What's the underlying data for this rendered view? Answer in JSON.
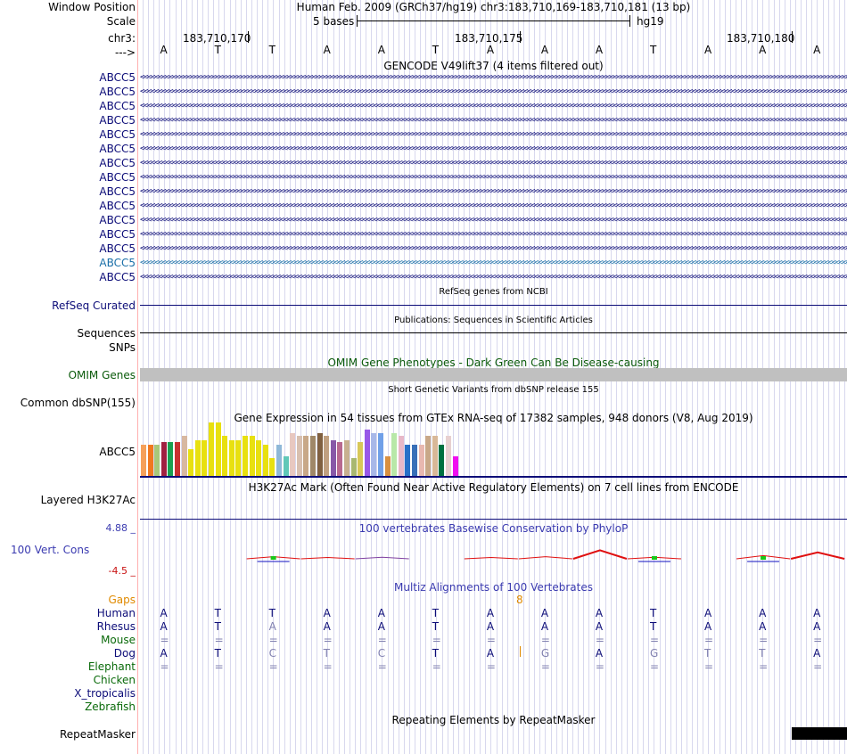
{
  "header": {
    "window_position_label": "Window Position",
    "assembly_text": "Human Feb. 2009 (GRCh37/hg19)   chr3:183,710,169-183,710,181 (13 bp)",
    "scale_label": "Scale",
    "scale_bar_text": "5 bases",
    "scale_db": "hg19",
    "chrom_label": "chr3:",
    "strand_label": "--->",
    "positions": [
      "183,710,170",
      "183,710,175",
      "183,710,180"
    ]
  },
  "sequence": [
    "A",
    "T",
    "T",
    "A",
    "A",
    "T",
    "A",
    "A",
    "A",
    "T",
    "A",
    "A",
    "A"
  ],
  "gencode": {
    "title": "GENCODE V49lift37 (4 items filtered out)",
    "gene_labels": [
      "ABCC5",
      "ABCC5",
      "ABCC5",
      "ABCC5",
      "ABCC5",
      "ABCC5",
      "ABCC5",
      "ABCC5",
      "ABCC5",
      "ABCC5",
      "ABCC5",
      "ABCC5",
      "ABCC5",
      "ABCC5",
      "ABCC5"
    ],
    "arrow_text": "<<<<<<<<<<<<<<<<<<<<<<<<<<<<<<<<<<<<<<<<<<<<<<<<<<<<<<<<<<<<<<<<<<<<<<<<<<<<<<<<<<<<<<<<<<<<<<<<<<<<<<<<<<<<<<<<<<<<<<<<<<<<<<<<<<<<<<<<<<<<<<<<<<<<<<<<<<<<<<<<<<<<<<<<<<<<<<<<<<<<<<<<<<<<<<<<<<<<<<<<<<<<<<<<<<<<<<<<<<<<<<<<<<<<<<<<<<<<<<<<",
    "colors": {
      "navy": "#0c0c78",
      "highlight": "#1a6fa8"
    }
  },
  "refseq": {
    "title": "RefSeq genes from NCBI",
    "label": "RefSeq Curated"
  },
  "publications": {
    "title": "Publications: Sequences in Scientific Articles",
    "label": "Sequences"
  },
  "snps_label": "SNPs",
  "omim": {
    "title": "OMIM Gene Phenotypes - Dark Green Can Be Disease-causing",
    "label": "OMIM Genes",
    "color": "#0a5a0a"
  },
  "dbsnp": {
    "title": "Short Genetic Variants from dbSNP release 155",
    "label": "Common dbSNP(155)"
  },
  "gtex": {
    "title": "Gene Expression in 54 tissues from GTEx RNA-seq of 17382 samples, 948 donors (V8, Aug 2019)",
    "label": "ABCC5",
    "bars": [
      {
        "v": 0.35,
        "c": "#f5a05a"
      },
      {
        "v": 0.35,
        "c": "#f07820"
      },
      {
        "v": 0.35,
        "c": "#a8c87a"
      },
      {
        "v": 0.38,
        "c": "#a02040"
      },
      {
        "v": 0.38,
        "c": "#1aa050"
      },
      {
        "v": 0.38,
        "c": "#c83030"
      },
      {
        "v": 0.45,
        "c": "#d8b8a0"
      },
      {
        "v": 0.3,
        "c": "#e8e010"
      },
      {
        "v": 0.4,
        "c": "#e8e010"
      },
      {
        "v": 0.4,
        "c": "#e8e010"
      },
      {
        "v": 0.6,
        "c": "#e8e010"
      },
      {
        "v": 0.6,
        "c": "#e8e010"
      },
      {
        "v": 0.45,
        "c": "#e8e010"
      },
      {
        "v": 0.4,
        "c": "#e8e010"
      },
      {
        "v": 0.4,
        "c": "#e8e010"
      },
      {
        "v": 0.45,
        "c": "#e8e010"
      },
      {
        "v": 0.45,
        "c": "#e8e010"
      },
      {
        "v": 0.4,
        "c": "#e8e010"
      },
      {
        "v": 0.35,
        "c": "#e8e010"
      },
      {
        "v": 0.2,
        "c": "#e8e010"
      },
      {
        "v": 0.35,
        "c": "#8fb8d8"
      },
      {
        "v": 0.22,
        "c": "#60c8b8"
      },
      {
        "v": 0.48,
        "c": "#e8c8c0"
      },
      {
        "v": 0.45,
        "c": "#d8c0b0"
      },
      {
        "v": 0.45,
        "c": "#c8a888"
      },
      {
        "v": 0.45,
        "c": "#a08868"
      },
      {
        "v": 0.48,
        "c": "#806040"
      },
      {
        "v": 0.45,
        "c": "#c0a080"
      },
      {
        "v": 0.4,
        "c": "#8858a8"
      },
      {
        "v": 0.38,
        "c": "#b86890"
      },
      {
        "v": 0.4,
        "c": "#c8b090"
      },
      {
        "v": 0.2,
        "c": "#a8b870"
      },
      {
        "v": 0.38,
        "c": "#d8c858"
      },
      {
        "v": 0.52,
        "c": "#9858e8"
      },
      {
        "v": 0.48,
        "c": "#a8b8e8"
      },
      {
        "v": 0.48,
        "c": "#70a0e8"
      },
      {
        "v": 0.22,
        "c": "#d89040"
      },
      {
        "v": 0.48,
        "c": "#b8e8a8"
      },
      {
        "v": 0.45,
        "c": "#e8b8c8"
      },
      {
        "v": 0.35,
        "c": "#2870c8"
      },
      {
        "v": 0.35,
        "c": "#3870b8"
      },
      {
        "v": 0.35,
        "c": "#e8b8b0"
      },
      {
        "v": 0.45,
        "c": "#c8a888"
      },
      {
        "v": 0.45,
        "c": "#d8b898"
      },
      {
        "v": 0.35,
        "c": "#007040"
      },
      {
        "v": 0.45,
        "c": "#e8d0d0"
      },
      {
        "v": 0.22,
        "c": "#f010f0"
      }
    ]
  },
  "h3k27ac": {
    "title": "H3K27Ac Mark (Often Found Near Active Regulatory Elements) on 7 cell lines from ENCODE",
    "label": "Layered H3K27Ac"
  },
  "phylop": {
    "title": "100 vertebrates Basewise Conservation by PhyloP",
    "label": "100 Vert. Cons",
    "max": "4.88 _",
    "min": "-4.5 _",
    "values": [
      0,
      0,
      0.2,
      0.05,
      0.15,
      0,
      0.08,
      0.2,
      0.8,
      0.15,
      0,
      0.3,
      0.6
    ],
    "colors": {
      "title": "#3a3ab0",
      "label": "#3a3ab0",
      "pos": "#1010c0",
      "neg": "#c81010",
      "red": "#e01010",
      "green": "#18c818"
    }
  },
  "multiz": {
    "title": "Multiz Alignments of 100 Vertebrates",
    "gaps_label": "Gaps",
    "gaps_value": "8",
    "species": [
      {
        "name": "Human",
        "color": "navy",
        "bases": [
          "A",
          "T",
          "T",
          "A",
          "A",
          "T",
          "A",
          "A",
          "A",
          "T",
          "A",
          "A",
          "A"
        ]
      },
      {
        "name": "Rhesus",
        "color": "navy",
        "bases": [
          "A",
          "T",
          "A",
          "A",
          "A",
          "T",
          "A",
          "A",
          "A",
          "T",
          "A",
          "A",
          "A"
        ]
      },
      {
        "name": "Mouse",
        "color": "green",
        "bases": [
          "=",
          "=",
          "=",
          "=",
          "=",
          "=",
          "=",
          "=",
          "=",
          "=",
          "=",
          "=",
          "="
        ]
      },
      {
        "name": "Dog",
        "color": "navy",
        "bases": [
          "A",
          "T",
          "C",
          "T",
          "C",
          "T",
          "A",
          "G",
          "A",
          "G",
          "T",
          "T",
          "A"
        ]
      },
      {
        "name": "Elephant",
        "color": "green",
        "bases": [
          "=",
          "=",
          "=",
          "=",
          "=",
          "=",
          "=",
          "=",
          "=",
          "=",
          "=",
          "=",
          "="
        ]
      },
      {
        "name": "Chicken",
        "color": "green",
        "bases": []
      },
      {
        "name": "X_tropicalis",
        "color": "navy",
        "bases": []
      },
      {
        "name": "Zebrafish",
        "color": "green",
        "bases": []
      }
    ],
    "mismatch": [
      [],
      [
        2
      ],
      [],
      [
        2,
        3,
        4,
        7,
        9,
        10,
        11
      ],
      [],
      [],
      [],
      []
    ]
  },
  "repeatmasker": {
    "title": "Repeating Elements by RepeatMasker",
    "label": "RepeatMasker"
  }
}
